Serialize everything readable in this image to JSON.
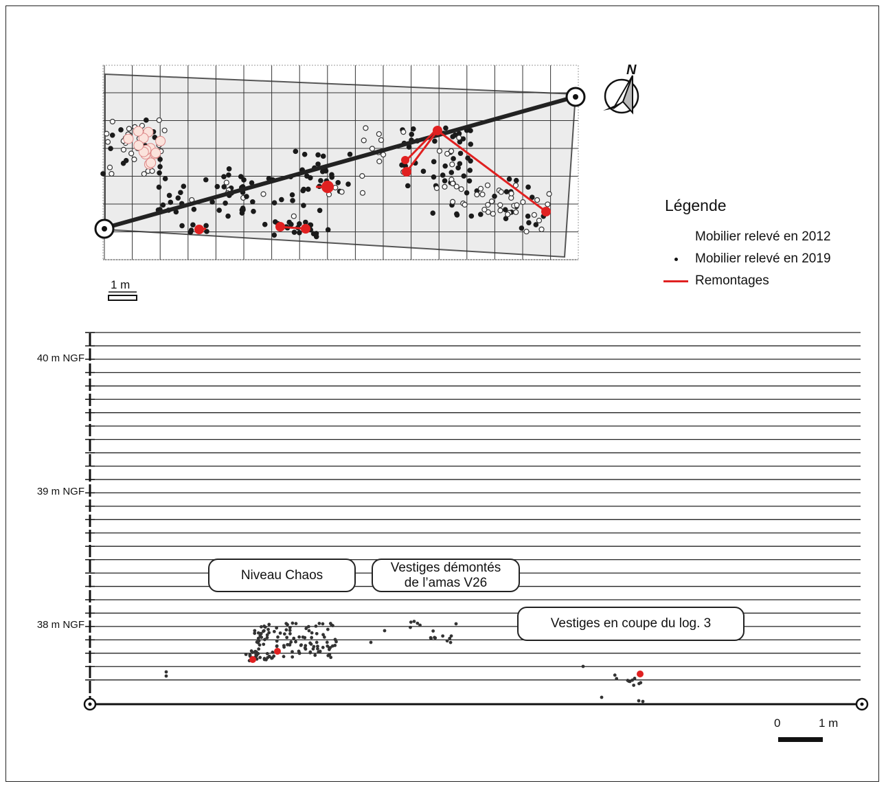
{
  "legend": {
    "title": "Légende",
    "items": [
      {
        "label": "Mobilier relevé en 2012",
        "symbol": "open-circle-icon"
      },
      {
        "label": "Mobilier relevé en 2019",
        "symbol": "filled-dot-icon"
      },
      {
        "label": "Remontages",
        "symbol": "red-line-icon"
      }
    ]
  },
  "plan_view": {
    "scale_label": "1 m",
    "north_label": "N"
  },
  "section_view": {
    "y_labels": [
      "40 m NGF",
      "39 m NGF",
      "38 m NGF"
    ],
    "scale_zero": "0",
    "scale_one": "1 m",
    "callouts": {
      "chaos": "Niveau Chaos",
      "vestiges_line1": "Vestiges démontés",
      "vestiges_line2": "de l’amas V26",
      "coupe": "Vestiges en coupe du log. 3"
    }
  },
  "colors": {
    "remontage": "#e02020",
    "dot_2019": "#1a1a1a",
    "grid_fill": "#ececec"
  }
}
